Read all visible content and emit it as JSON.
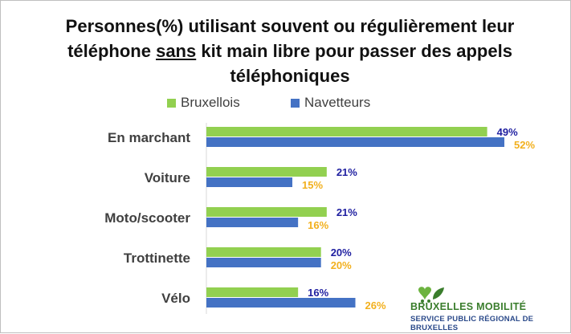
{
  "chart_data": {
    "type": "bar",
    "orientation": "horizontal",
    "title_parts": [
      "Personnes(%) utilisant souvent ou régulièrement leur téléphone ",
      "sans",
      " kit main libre pour passer des appels téléphoniques"
    ],
    "categories": [
      "En marchant",
      "Voiture",
      "Moto/scooter",
      "Trottinette",
      "Vélo"
    ],
    "series": [
      {
        "name": "Bruxellois",
        "color": "#92d050",
        "values": [
          49,
          21,
          21,
          20,
          16
        ],
        "labels": [
          "49%",
          "21%",
          "21%",
          "20%",
          "16%"
        ],
        "label_color": "#1f1fa0"
      },
      {
        "name": "Navetteurs",
        "color": "#4472c4",
        "values": [
          52,
          15,
          16,
          20,
          26
        ],
        "labels": [
          "52%",
          "15%",
          "16%",
          "20%",
          "26%"
        ],
        "label_color": "#f2b01e"
      }
    ],
    "xlim": [
      0,
      60
    ],
    "grid": false,
    "legend_position": "top"
  },
  "brand": {
    "name": "BRUXELLES MOBILITÉ",
    "subtitle": "SERVICE PUBLIC RÉGIONAL DE BRUXELLES",
    "logo_icon": "heart-leaf-logo-icon"
  }
}
